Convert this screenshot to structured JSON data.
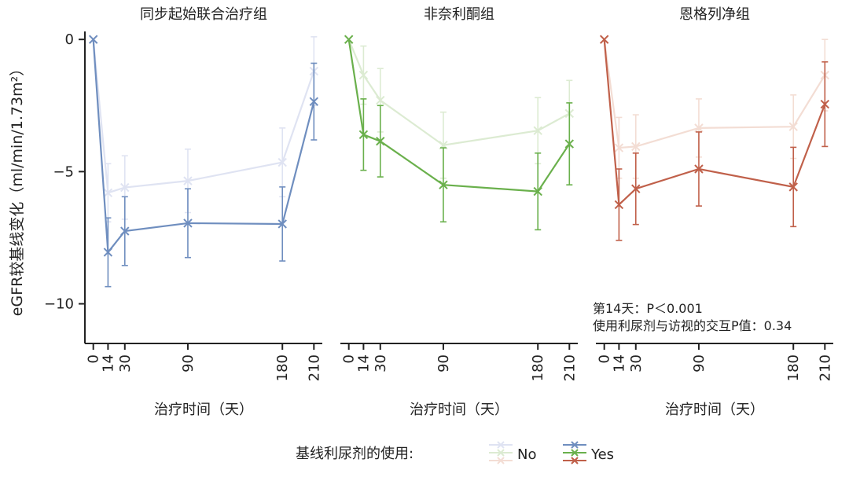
{
  "chart_data": {
    "type": "line",
    "ylabel": "eGFR较基线变化（ml/min/1.73m²）",
    "ylim": [
      -11.5,
      0.6
    ],
    "yticks": [
      0,
      -5,
      -10
    ],
    "ytick_labels": [
      "0",
      "−5",
      "−10"
    ],
    "x": [
      0,
      14,
      30,
      90,
      180,
      210
    ],
    "xtick_labels": [
      "0",
      "14",
      "30",
      "90",
      "180",
      "210"
    ],
    "xlim": [
      -8,
      218
    ],
    "xlabel": "治疗时间（天）",
    "legend": {
      "title": "基线利尿剂的使用:",
      "labels": [
        "No",
        "Yes"
      ],
      "placement": "bottom-center"
    },
    "annotation": {
      "lines": [
        "第14天：P＜0.001",
        "使用利尿剂与访视的交互P值：0.34"
      ],
      "placement": "bottom-right"
    },
    "panels": [
      {
        "title": "同步起始联合治疗组",
        "series": [
          {
            "name": "No",
            "color": "#dfe3f2",
            "y": [
              0,
              -5.8,
              -5.6,
              -5.35,
              -4.65,
              -1.2
            ],
            "err": [
              0,
              1.1,
              1.2,
              1.2,
              1.3,
              1.3
            ]
          },
          {
            "name": "Yes",
            "color": "#6f8ebf",
            "y": [
              0,
              -8.05,
              -7.25,
              -6.95,
              -6.98,
              -2.35
            ],
            "err": [
              0,
              1.3,
              1.3,
              1.3,
              1.4,
              1.45
            ]
          }
        ]
      },
      {
        "title": "非奈利酮组",
        "series": [
          {
            "name": "No",
            "color": "#dcebd2",
            "y": [
              0,
              -1.35,
              -2.3,
              -4.0,
              -3.45,
              -2.8
            ],
            "err": [
              0,
              1.1,
              1.2,
              1.25,
              1.25,
              1.25
            ]
          },
          {
            "name": "Yes",
            "color": "#6ab04c",
            "y": [
              0,
              -3.6,
              -3.85,
              -5.5,
              -5.75,
              -3.95
            ],
            "err": [
              0,
              1.35,
              1.35,
              1.4,
              1.45,
              1.55
            ]
          }
        ]
      },
      {
        "title": "恩格列净组",
        "series": [
          {
            "name": "No",
            "color": "#f3ddd4",
            "y": [
              0,
              -4.1,
              -4.05,
              -3.35,
              -3.3,
              -1.35
            ],
            "err": [
              0,
              1.15,
              1.2,
              1.1,
              1.2,
              1.35
            ]
          },
          {
            "name": "Yes",
            "color": "#c0604a",
            "y": [
              0,
              -6.25,
              -5.65,
              -4.9,
              -5.58,
              -2.45
            ],
            "err": [
              0,
              1.35,
              1.35,
              1.4,
              1.5,
              1.6
            ]
          }
        ]
      }
    ]
  }
}
